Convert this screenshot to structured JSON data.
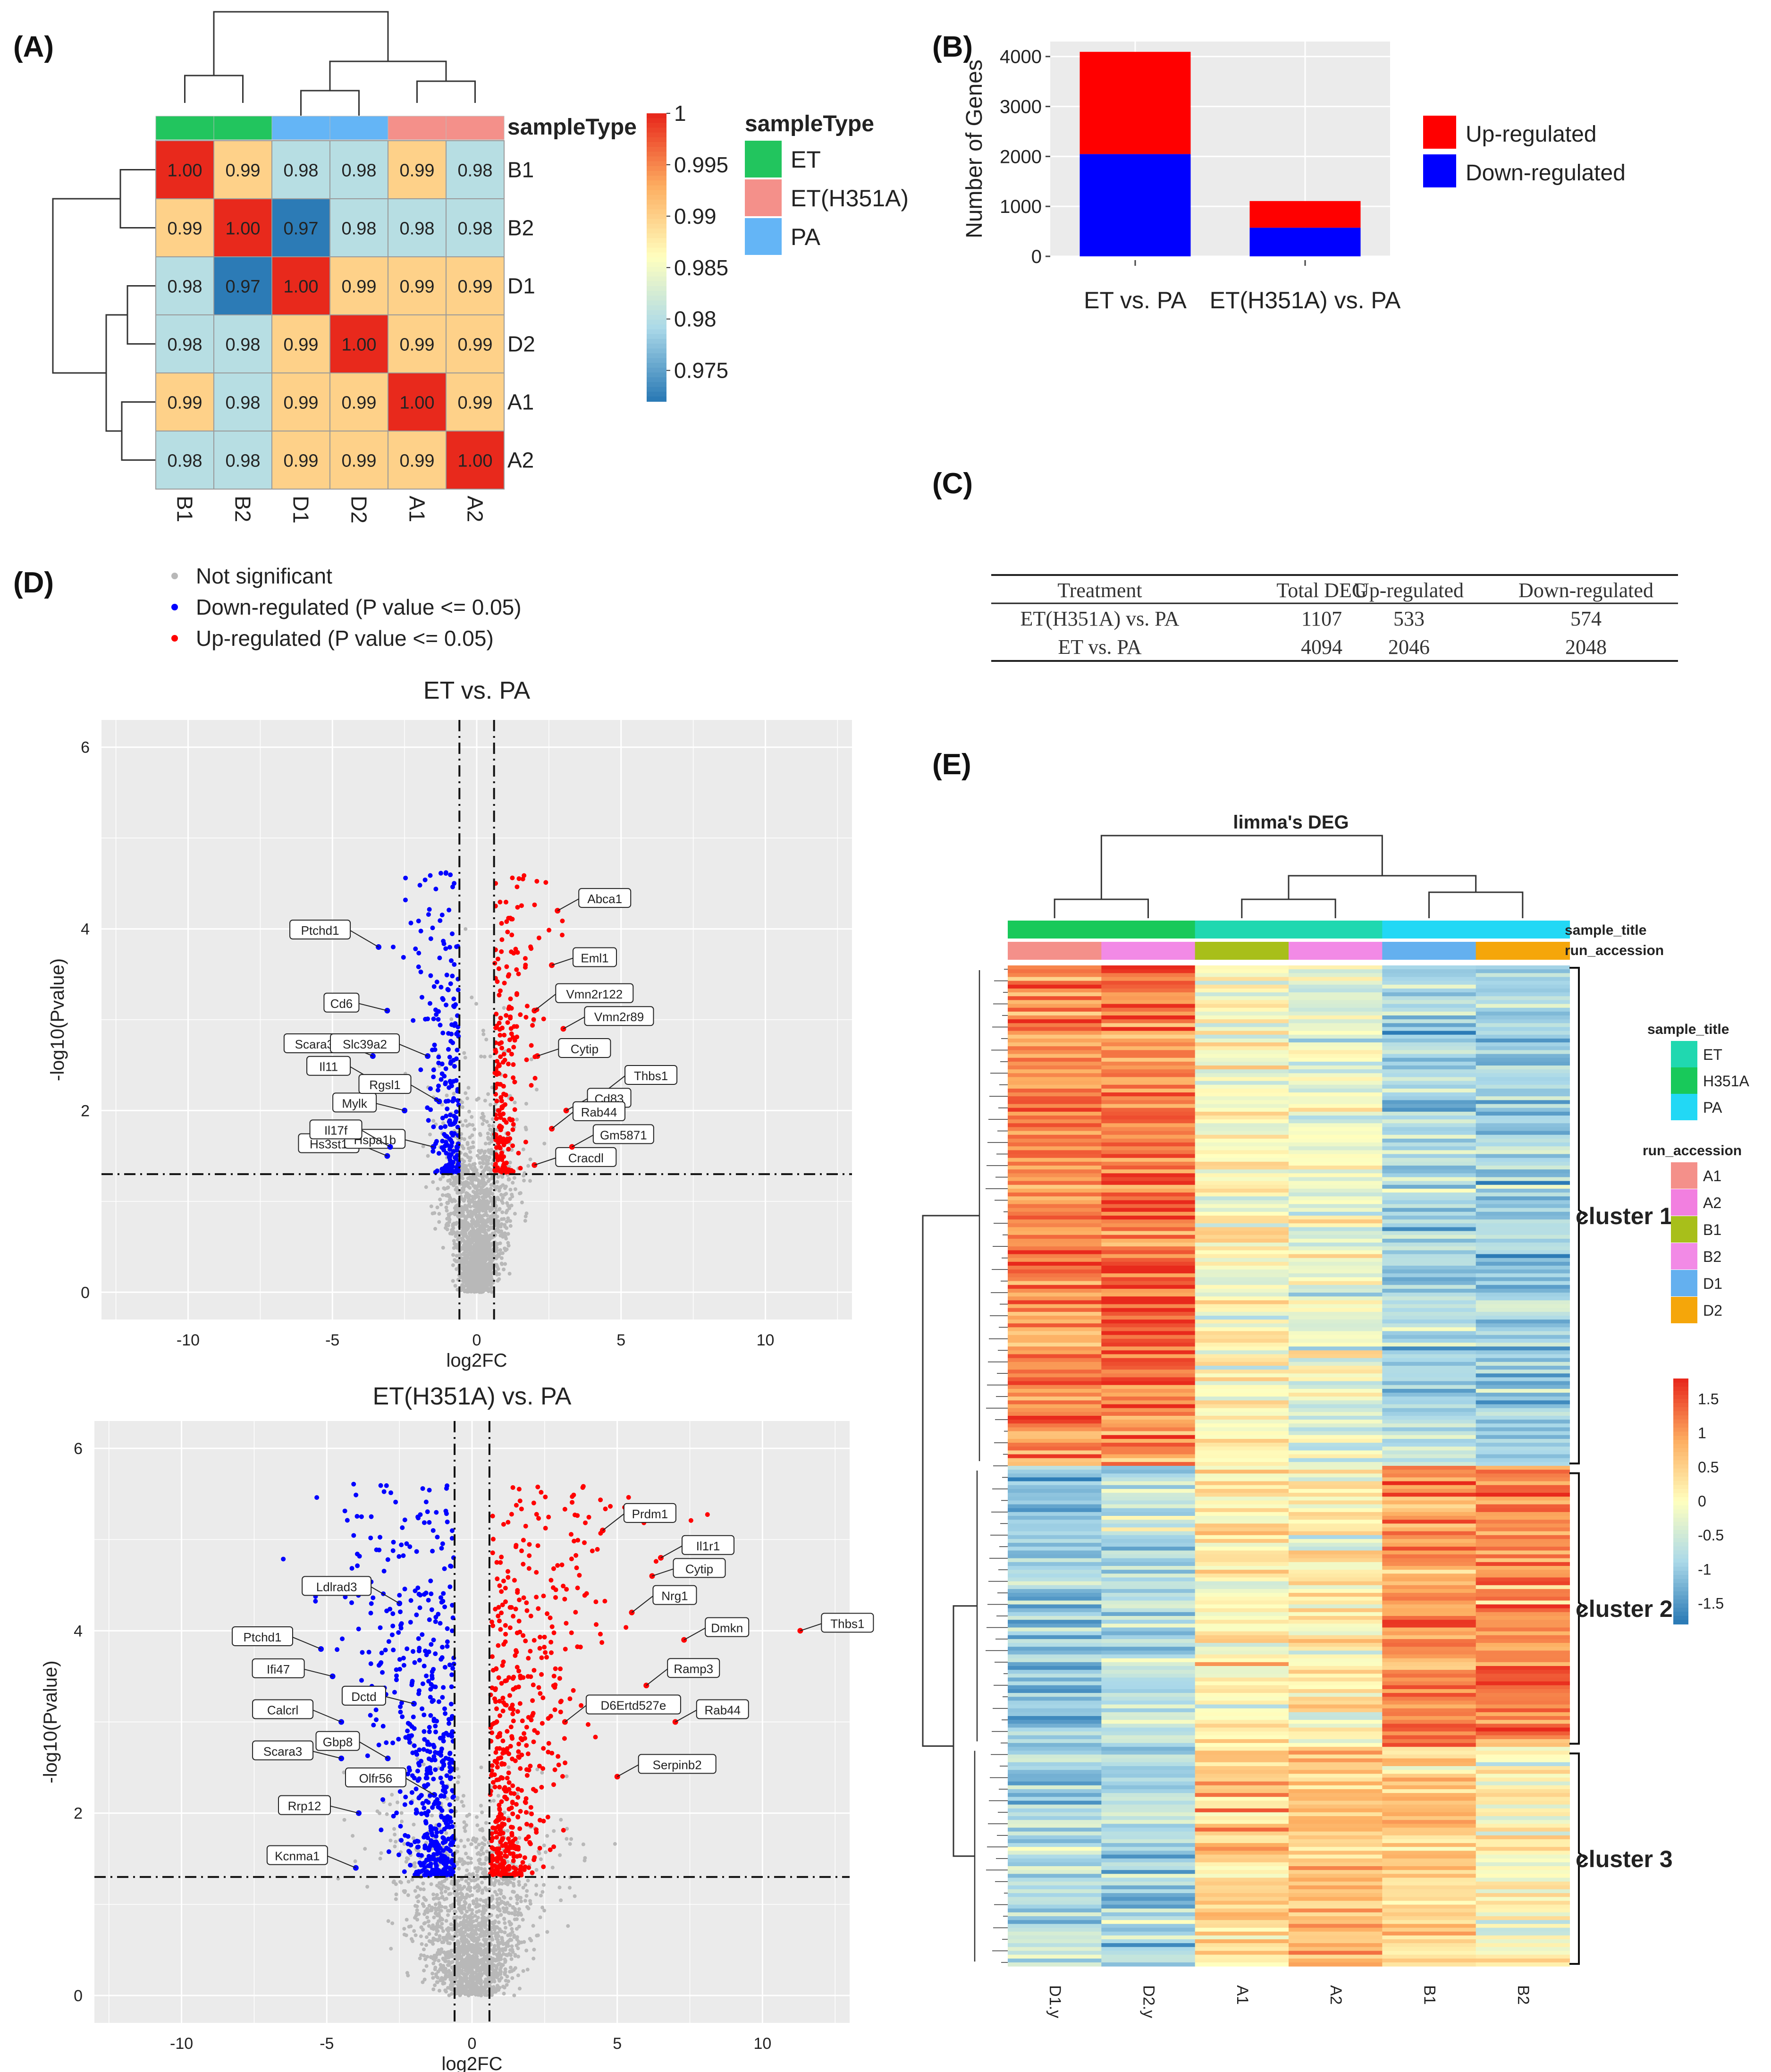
{
  "panel_labels": {
    "a": "(A)",
    "b": "(B)",
    "c": "(C)",
    "d": "(D)",
    "e": "(E)"
  },
  "colors": {
    "et": "#22c55e",
    "et_h351a": "#f4908a",
    "pa": "#64b5f6",
    "up": "#ff0000",
    "down": "#0000ff",
    "ns": "#b8b8b8",
    "panel_bg": "#ebebeb"
  },
  "chart_data": [
    {
      "id": "A",
      "type": "heatmap",
      "title": "sampleType",
      "rows": [
        "B1",
        "B2",
        "D1",
        "D2",
        "A1",
        "A2"
      ],
      "columns": [
        "B1",
        "B2",
        "D1",
        "D2",
        "A1",
        "A2"
      ],
      "column_groups": [
        "ET",
        "ET",
        "PA",
        "PA",
        "ET(H351A)",
        "ET(H351A)"
      ],
      "values": [
        [
          1.0,
          0.99,
          0.98,
          0.98,
          0.99,
          0.98
        ],
        [
          0.99,
          1.0,
          0.97,
          0.98,
          0.98,
          0.98
        ],
        [
          0.98,
          0.97,
          1.0,
          0.99,
          0.99,
          0.99
        ],
        [
          0.98,
          0.98,
          0.99,
          1.0,
          0.99,
          0.99
        ],
        [
          0.99,
          0.98,
          0.99,
          0.99,
          1.0,
          0.99
        ],
        [
          0.98,
          0.98,
          0.99,
          0.99,
          0.99,
          1.0
        ]
      ],
      "colorbar": {
        "ticks": [
          "1",
          "0.995",
          "0.99",
          "0.985",
          "0.98",
          "0.975"
        ],
        "range": [
          0.972,
          1.0
        ]
      },
      "legend": {
        "title": "sampleType",
        "entries": [
          "ET",
          "ET(H351A)",
          "PA"
        ]
      }
    },
    {
      "id": "B",
      "type": "bar",
      "categories": [
        "ET vs. PA",
        "ET(H351A) vs. PA"
      ],
      "series": [
        {
          "name": "Down-regulated",
          "values": [
            2048,
            574
          ]
        },
        {
          "name": "Up-regulated",
          "values": [
            2046,
            533
          ]
        }
      ],
      "ylabel": "Number of Genes",
      "yticks": [
        "0",
        "1000",
        "2000",
        "3000",
        "4000"
      ],
      "ylim": [
        0,
        4300
      ],
      "legend": [
        "Up-regulated",
        "Down-regulated"
      ]
    },
    {
      "id": "D1",
      "type": "scatter",
      "title": "ET vs. PA",
      "xlabel": "log2FC",
      "ylabel": "-log10(Pvalue)",
      "xlim": [
        -13,
        13
      ],
      "ylim": [
        -0.3,
        6.3
      ],
      "xticks": [
        "-10",
        "-5",
        "0",
        "5",
        "10"
      ],
      "yticks": [
        "0",
        "2",
        "4",
        "6"
      ],
      "thresholds": {
        "x": [
          -0.6,
          0.6
        ],
        "y": 1.3
      },
      "labeled_genes": [
        {
          "gene": "Ptchd1",
          "x": -3.4,
          "y": 3.8
        },
        {
          "gene": "Scara3",
          "x": -3.6,
          "y": 2.6
        },
        {
          "gene": "Cd6",
          "x": -3.1,
          "y": 3.1
        },
        {
          "gene": "Il11",
          "x": -3.4,
          "y": 2.3
        },
        {
          "gene": "Slc39a2",
          "x": -1.7,
          "y": 2.6
        },
        {
          "gene": "Mylk",
          "x": -2.5,
          "y": 2.0
        },
        {
          "gene": "Rgsl1",
          "x": -1.3,
          "y": 2.1
        },
        {
          "gene": "Hs3st1",
          "x": -3.1,
          "y": 1.5
        },
        {
          "gene": "Hspa1b",
          "x": -1.5,
          "y": 1.6
        },
        {
          "gene": "Il17f",
          "x": -3.0,
          "y": 1.6
        },
        {
          "gene": "Abca1",
          "x": 2.8,
          "y": 4.2
        },
        {
          "gene": "Eml1",
          "x": 2.6,
          "y": 3.6
        },
        {
          "gene": "Vmn2r122",
          "x": 2.0,
          "y": 3.1
        },
        {
          "gene": "Vmn2r89",
          "x": 3.0,
          "y": 2.9
        },
        {
          "gene": "Cytip",
          "x": 2.1,
          "y": 2.6
        },
        {
          "gene": "Thbs1",
          "x": 4.4,
          "y": 2.2
        },
        {
          "gene": "Cd83",
          "x": 3.1,
          "y": 2.0
        },
        {
          "gene": "Cracdl",
          "x": 2.0,
          "y": 1.4
        },
        {
          "gene": "Rab44",
          "x": 2.6,
          "y": 1.8
        },
        {
          "gene": "Gm5871",
          "x": 3.3,
          "y": 1.6
        }
      ],
      "points": {
        "Not significant": "grey",
        "Down-regulated": "blue",
        "Up-regulated": "red"
      }
    },
    {
      "id": "D2",
      "type": "scatter",
      "title": "ET(H351A) vs. PA",
      "xlabel": "log2FC",
      "ylabel": "-log10(Pvalue)",
      "xlim": [
        -13,
        13
      ],
      "ylim": [
        -0.3,
        6.3
      ],
      "xticks": [
        "-10",
        "-5",
        "0",
        "5",
        "10"
      ],
      "yticks": [
        "0",
        "2",
        "4",
        "6"
      ],
      "thresholds": {
        "x": [
          -0.6,
          0.6
        ],
        "y": 1.3
      },
      "labeled_genes": [
        {
          "gene": "Prdm1",
          "x": 4.5,
          "y": 5.1
        },
        {
          "gene": "Il1r1",
          "x": 6.5,
          "y": 4.8
        },
        {
          "gene": "Cytip",
          "x": 6.2,
          "y": 4.6
        },
        {
          "gene": "Ldlrad3",
          "x": -2.5,
          "y": 4.3
        },
        {
          "gene": "Ptchd1",
          "x": -5.2,
          "y": 3.8
        },
        {
          "gene": "Thbs1",
          "x": 11.3,
          "y": 4.0
        },
        {
          "gene": "Nrg1",
          "x": 5.5,
          "y": 4.2
        },
        {
          "gene": "Dmkn",
          "x": 7.3,
          "y": 3.9
        },
        {
          "gene": "Ifi47",
          "x": -4.8,
          "y": 3.5
        },
        {
          "gene": "Ramp3",
          "x": 6.0,
          "y": 3.4
        },
        {
          "gene": "Calcrl",
          "x": -4.5,
          "y": 3.0
        },
        {
          "gene": "Dctd",
          "x": -2.0,
          "y": 3.2
        },
        {
          "gene": "D6Ertd527e",
          "x": 3.2,
          "y": 3.0
        },
        {
          "gene": "Rab44",
          "x": 7.0,
          "y": 3.0
        },
        {
          "gene": "Scara3",
          "x": -4.5,
          "y": 2.6
        },
        {
          "gene": "Gbp8",
          "x": -2.9,
          "y": 2.6
        },
        {
          "gene": "Serpinb2",
          "x": 5.0,
          "y": 2.4
        },
        {
          "gene": "Rrp12",
          "x": -3.9,
          "y": 2.0
        },
        {
          "gene": "Olfr56",
          "x": -1.3,
          "y": 2.2
        },
        {
          "gene": "Kcnma1",
          "x": -4.0,
          "y": 1.4
        }
      ],
      "points": {
        "Not significant": "grey",
        "Down-regulated": "blue",
        "Up-regulated": "red"
      }
    },
    {
      "id": "E",
      "type": "heatmap",
      "title": "limma's DEG",
      "columns": [
        "D1.y",
        "D2.y",
        "A1",
        "A2",
        "B1",
        "B2"
      ],
      "sample_title_groups": [
        "H351A",
        "H351A",
        "ET",
        "ET",
        "PA",
        "PA"
      ],
      "run_accession": [
        "A1",
        "B2",
        "B1",
        "B2",
        "D1",
        "D2"
      ],
      "clusters": [
        "cluster 1",
        "cluster 2",
        "cluster 3"
      ],
      "cluster_means": [
        [
          1.2,
          1.3,
          0.0,
          -0.2,
          -0.9,
          -1.0
        ],
        [
          -1.1,
          -0.8,
          0.1,
          0.2,
          1.0,
          1.2
        ],
        [
          -0.9,
          -0.9,
          0.6,
          0.8,
          0.5,
          0.0
        ]
      ],
      "colorbar": {
        "ticks": [
          "1.5",
          "1",
          "0.5",
          "0",
          "-0.5",
          "-1",
          "-1.5"
        ],
        "range": [
          -1.8,
          1.8
        ]
      },
      "legend_sample_title": {
        "title": "sample_title",
        "entries": [
          "ET",
          "H351A",
          "PA"
        ]
      },
      "legend_run_accession": {
        "title": "run_accession",
        "entries": [
          "A1",
          "A2",
          "B1",
          "B2",
          "D1",
          "D2"
        ]
      },
      "annotation_labels": [
        "sample_title",
        "run_accession"
      ]
    }
  ],
  "legend_d": {
    "entries": [
      "Not significant",
      "Down-regulated (P value <= 0.05)",
      "Up-regulated (P value <= 0.05)"
    ]
  },
  "table_c": {
    "header": [
      "Treatment",
      "Total DEG",
      "Up-regulated",
      "Down-regulated"
    ],
    "rows": [
      [
        "ET(H351A)  vs.  PA",
        "1107",
        "533",
        "574"
      ],
      [
        "ET  vs.  PA",
        "4094",
        "2046",
        "2048"
      ]
    ]
  }
}
